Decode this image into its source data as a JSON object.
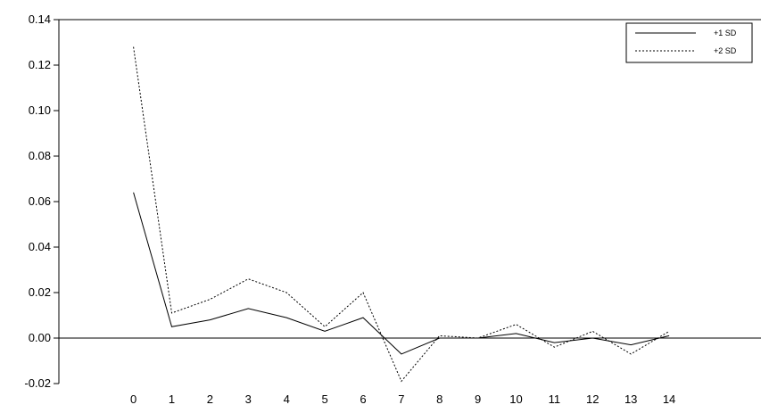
{
  "chart_data": {
    "type": "line",
    "x": [
      0,
      1,
      2,
      3,
      4,
      5,
      6,
      7,
      8,
      9,
      10,
      11,
      12,
      13,
      14
    ],
    "series": [
      {
        "name": "+1 SD",
        "line_style": "solid",
        "values": [
          0.064,
          0.005,
          0.008,
          0.013,
          0.009,
          0.003,
          0.009,
          -0.007,
          0.0,
          0.0,
          0.002,
          -0.002,
          0.0,
          -0.003,
          0.001
        ]
      },
      {
        "name": "+2 SD",
        "line_style": "dotted",
        "values": [
          0.128,
          0.011,
          0.017,
          0.026,
          0.02,
          0.005,
          0.02,
          -0.019,
          0.001,
          0.0,
          0.006,
          -0.004,
          0.003,
          -0.007,
          0.003
        ]
      }
    ],
    "y_ticks": [
      "0.14",
      "0.12",
      "0.10",
      "0.08",
      "0.06",
      "0.04",
      "0.02",
      "0.00",
      "-0.02"
    ],
    "x_ticks": [
      "0",
      "1",
      "2",
      "3",
      "4",
      "5",
      "6",
      "7",
      "8",
      "9",
      "10",
      "11",
      "12",
      "13",
      "14"
    ],
    "ylim": [
      -0.02,
      0.14
    ],
    "xlim": [
      -1.95,
      16.4
    ],
    "zero_line": true,
    "grid": false,
    "legend_position": "top-right",
    "title": "",
    "xlabel": "",
    "ylabel": "",
    "colors": {
      "line": "#000000",
      "axis": "#000000",
      "background": "#ffffff"
    }
  }
}
